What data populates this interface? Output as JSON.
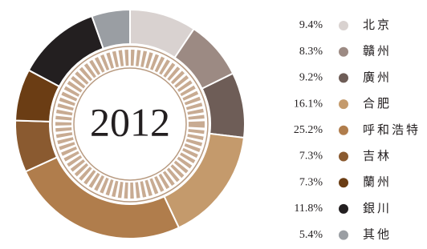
{
  "chart_data": {
    "type": "donut",
    "center_label": "2012",
    "categories": [
      "北京",
      "贛州",
      "廣州",
      "合肥",
      "呼和浩特",
      "吉林",
      "蘭州",
      "銀川",
      "其他"
    ],
    "values": [
      9.4,
      8.3,
      9.2,
      16.1,
      25.2,
      7.3,
      7.3,
      11.8,
      5.4
    ],
    "value_labels": [
      "9.4%",
      "8.3%",
      "9.2%",
      "16.1%",
      "25.2%",
      "7.3%",
      "7.3%",
      "11.8%",
      "5.4%"
    ],
    "colors": [
      "#d9d2d0",
      "#9c8a83",
      "#6e5d57",
      "#c49a6c",
      "#b07d4c",
      "#8a5a30",
      "#6b3d14",
      "#231f20",
      "#9a9ea3"
    ],
    "legend": "right"
  }
}
